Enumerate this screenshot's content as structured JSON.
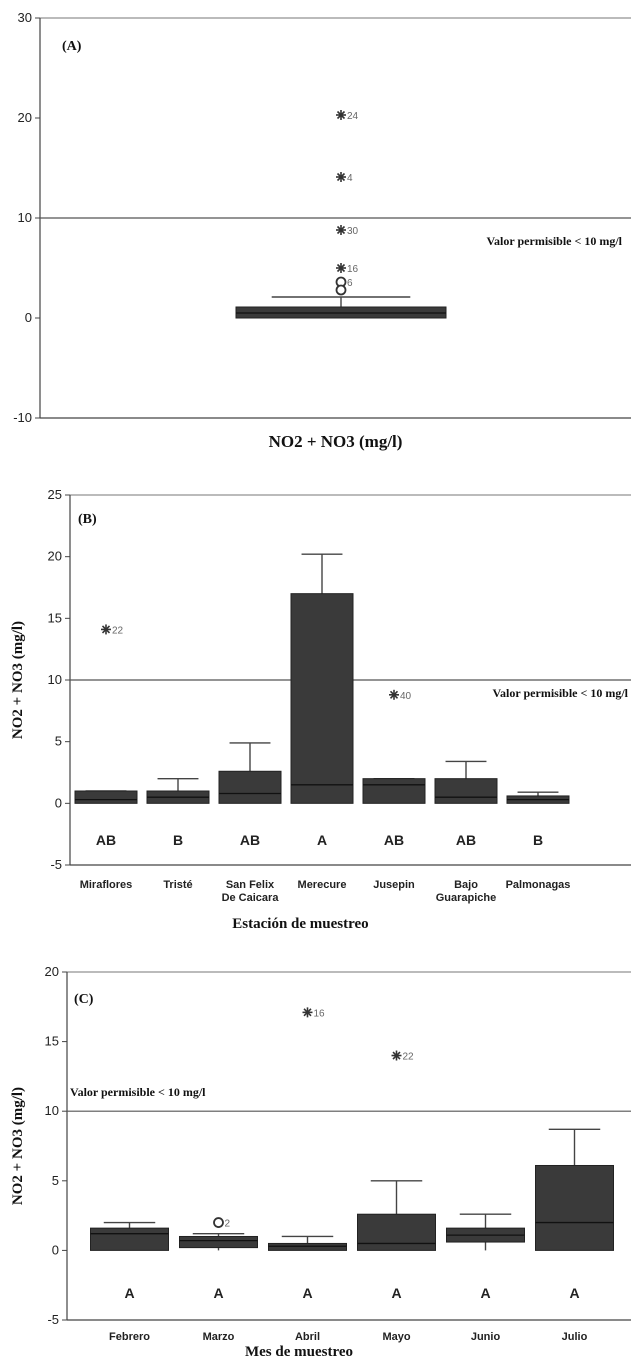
{
  "chart_data": [
    {
      "type": "box",
      "panel_label": "(A)",
      "xlabel": "NO2 + NO3 (mg/l)",
      "ylabel": "",
      "ylim": [
        -10,
        30
      ],
      "yticks": [
        "-10",
        "0",
        "10",
        "20",
        "30"
      ],
      "threshold": {
        "value": 10,
        "label": "Valor permisible < 10 mg/l"
      },
      "boxes": [
        {
          "category": "",
          "q1": 0,
          "median": 0.5,
          "q3": 1.1,
          "whisker_low": 0,
          "whisker_high": 2.1,
          "group": "",
          "outliers": [
            {
              "y": 20.3,
              "marker": "star",
              "label": "24"
            },
            {
              "y": 14.1,
              "marker": "star",
              "label": "4"
            },
            {
              "y": 8.8,
              "marker": "star",
              "label": "30"
            },
            {
              "y": 5.0,
              "marker": "star",
              "label": "16"
            },
            {
              "y": 3.6,
              "marker": "circle",
              "label": "6"
            },
            {
              "y": 2.8,
              "marker": "circle",
              "label": ""
            }
          ]
        }
      ]
    },
    {
      "type": "box",
      "panel_label": "(B)",
      "xlabel": "Estación de muestreo",
      "ylabel": "NO2 + NO3 (mg/l)",
      "ylim": [
        -5,
        25
      ],
      "yticks": [
        "-5",
        "0",
        "5",
        "10",
        "15",
        "20",
        "25"
      ],
      "threshold": {
        "value": 10,
        "label": "Valor permisible < 10 mg/l"
      },
      "boxes": [
        {
          "category": "Miraflores",
          "q1": 0,
          "median": 0.3,
          "q3": 1.0,
          "whisker_low": 0,
          "whisker_high": 1.0,
          "group": "AB",
          "outliers": [
            {
              "y": 14.1,
              "marker": "star",
              "label": "22"
            }
          ]
        },
        {
          "category": "Tristé",
          "q1": 0,
          "median": 0.5,
          "q3": 1.0,
          "whisker_low": 0,
          "whisker_high": 2.0,
          "group": "B",
          "outliers": []
        },
        {
          "category": "San Felix De Caicara",
          "q1": 0,
          "median": 0.8,
          "q3": 2.6,
          "whisker_low": 0,
          "whisker_high": 4.9,
          "group": "AB",
          "outliers": []
        },
        {
          "category": "Merecure",
          "q1": 0,
          "median": 1.5,
          "q3": 17.0,
          "whisker_low": 0,
          "whisker_high": 20.2,
          "group": "A",
          "outliers": []
        },
        {
          "category": "Jusepin",
          "q1": 0,
          "median": 1.5,
          "q3": 2.0,
          "whisker_low": 0,
          "whisker_high": 2.0,
          "group": "AB",
          "outliers": [
            {
              "y": 8.8,
              "marker": "star",
              "label": "40"
            }
          ]
        },
        {
          "category": "Bajo Guarapiche",
          "q1": 0,
          "median": 0.5,
          "q3": 2.0,
          "whisker_low": 0,
          "whisker_high": 3.4,
          "group": "AB",
          "outliers": []
        },
        {
          "category": "Palmonagas",
          "q1": 0,
          "median": 0.3,
          "q3": 0.6,
          "whisker_low": 0,
          "whisker_high": 0.9,
          "group": "B",
          "outliers": []
        }
      ]
    },
    {
      "type": "box",
      "panel_label": "(C)",
      "xlabel": "Mes de muestreo",
      "ylabel": "NO2 + NO3 (mg/l)",
      "ylim": [
        -5,
        20
      ],
      "yticks": [
        "-5",
        "0",
        "5",
        "10",
        "15",
        "20"
      ],
      "threshold": {
        "value": 10,
        "label": "Valor permisible < 10 mg/l"
      },
      "boxes": [
        {
          "category": "Febrero",
          "q1": 0,
          "median": 1.2,
          "q3": 1.6,
          "whisker_low": 0,
          "whisker_high": 2.0,
          "group": "A",
          "outliers": []
        },
        {
          "category": "Marzo",
          "q1": 0.2,
          "median": 0.7,
          "q3": 1.0,
          "whisker_low": 0,
          "whisker_high": 1.2,
          "group": "A",
          "outliers": [
            {
              "y": 2.0,
              "marker": "circle",
              "label": "2"
            }
          ]
        },
        {
          "category": "Abril",
          "q1": 0,
          "median": 0.3,
          "q3": 0.5,
          "whisker_low": 0,
          "whisker_high": 1.0,
          "group": "A",
          "outliers": [
            {
              "y": 17.1,
              "marker": "star",
              "label": "16"
            }
          ]
        },
        {
          "category": "Mayo",
          "q1": 0,
          "median": 0.5,
          "q3": 2.6,
          "whisker_low": 0,
          "whisker_high": 5.0,
          "group": "A",
          "outliers": [
            {
              "y": 14.0,
              "marker": "star",
              "label": "22"
            }
          ]
        },
        {
          "category": "Junio",
          "q1": 0.6,
          "median": 1.1,
          "q3": 1.6,
          "whisker_low": 0,
          "whisker_high": 2.6,
          "group": "A",
          "outliers": []
        },
        {
          "category": "Julio",
          "q1": 0,
          "median": 2.0,
          "q3": 6.1,
          "whisker_low": 0,
          "whisker_high": 8.7,
          "group": "A",
          "outliers": []
        }
      ]
    }
  ]
}
